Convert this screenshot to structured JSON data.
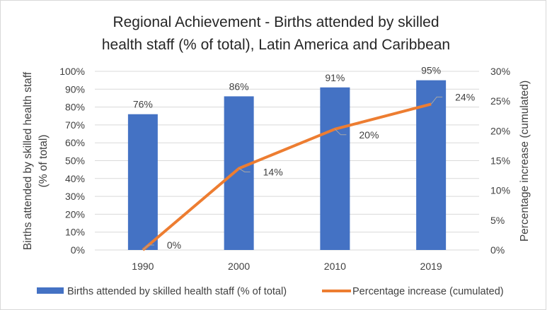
{
  "chart_data": {
    "type": "bar+line",
    "title_lines": [
      "Regional Achievement - Births attended by skilled",
      "health staff (% of total), Latin America and Caribbean"
    ],
    "categories": [
      "1990",
      "2000",
      "2010",
      "2019"
    ],
    "ylabel_lines": [
      "Births attended by skilled health staff",
      "(% of total)"
    ],
    "y2label": "Percentage increase (cumulated)",
    "ylim": [
      0,
      100
    ],
    "y2lim": [
      0,
      30
    ],
    "yticks": [
      "0%",
      "10%",
      "20%",
      "30%",
      "40%",
      "50%",
      "60%",
      "70%",
      "80%",
      "90%",
      "100%"
    ],
    "y2ticks": [
      "0%",
      "5%",
      "10%",
      "15%",
      "20%",
      "25%",
      "30%"
    ],
    "grid": true,
    "legend_position": "bottom",
    "series": [
      {
        "name": "Births attended by skilled health staff (% of total)",
        "type": "bar",
        "axis": "left",
        "color": "#4472C4",
        "values": [
          76,
          86,
          91,
          95
        ],
        "labels": [
          "76%",
          "86%",
          "91%",
          "95%"
        ]
      },
      {
        "name": "Percentage increase (cumulated)",
        "type": "line",
        "axis": "right",
        "color": "#ED7D31",
        "values": [
          0,
          13.7,
          20.3,
          24.5
        ],
        "labels": [
          "0%",
          "14%",
          "20%",
          "24%"
        ]
      }
    ]
  }
}
